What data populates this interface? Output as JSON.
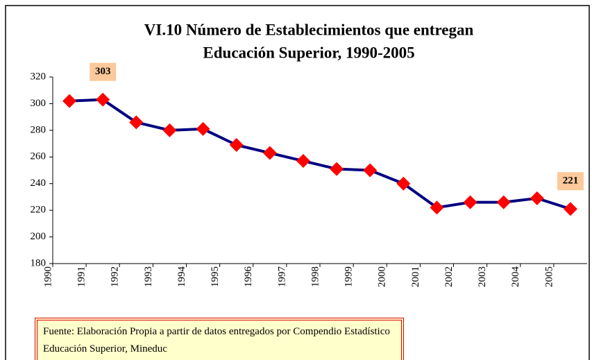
{
  "chart_data": {
    "type": "line",
    "title": [
      "VI.10 Número de Establecimientos que entregan",
      "Educación Superior, 1990-2005"
    ],
    "categories": [
      "1990",
      "1991",
      "1992",
      "1993",
      "1994",
      "1995",
      "1996",
      "1997",
      "1998",
      "1999",
      "2000",
      "2001",
      "2002",
      "2003",
      "2004",
      "2005"
    ],
    "series": [
      {
        "color": "#000080",
        "marker_color": "#ff0000",
        "values": [
          302,
          303,
          286,
          280,
          281,
          269,
          263,
          257,
          251,
          250,
          240,
          222,
          226,
          226,
          229,
          221
        ],
        "value_labels": [
          null,
          "303",
          null,
          null,
          null,
          null,
          null,
          null,
          null,
          null,
          null,
          null,
          null,
          null,
          null,
          "221"
        ]
      }
    ],
    "ylim": [
      180,
      320
    ],
    "yticks": [
      180,
      200,
      220,
      240,
      260,
      280,
      300,
      320
    ],
    "grid": false,
    "source": "Fuente: Elaboración Propia a partir de datos entregados por Compendio Estadístico Educación Superior, Mineduc"
  }
}
